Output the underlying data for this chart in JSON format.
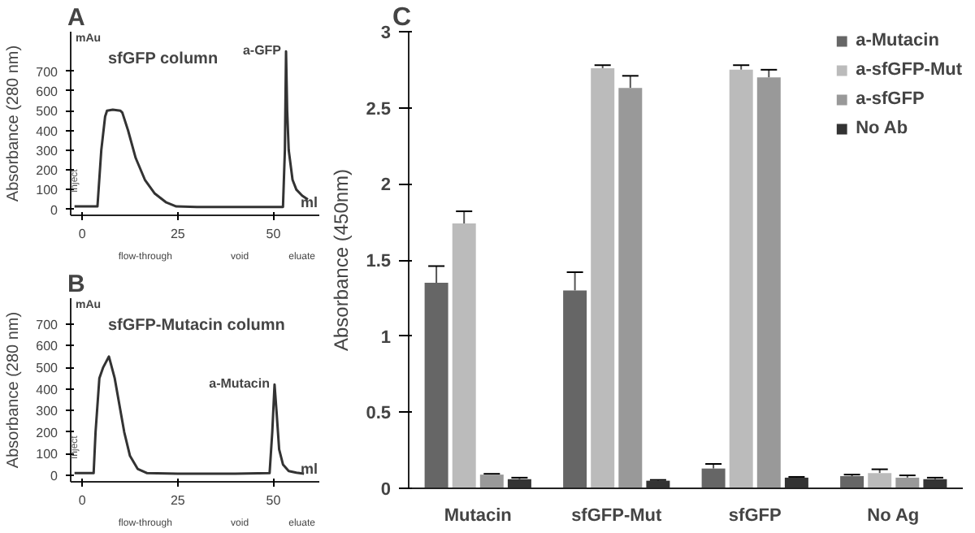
{
  "chart_data": [
    {
      "type": "line",
      "title": "sfGFP column",
      "xlabel": "ml",
      "ylabel": "Absorbance (280 nm)",
      "annotations": [
        "A",
        "mAu",
        {
          "text": "a-GFP",
          "x": 53.3,
          "y": 800
        },
        "Inject",
        "flow-through",
        "void",
        "eluate"
      ],
      "series": [
        {
          "color": "#333333",
          "x": [
            -2,
            0,
            4,
            5,
            6,
            6.5,
            8,
            10,
            10.5,
            12,
            14,
            16.4,
            19,
            22,
            24.6,
            30,
            40,
            50,
            52.5,
            53,
            53.3,
            53.6,
            54,
            55,
            56,
            57.5,
            59
          ],
          "values": [
            15,
            15,
            15,
            300,
            470,
            500,
            505,
            500,
            490,
            400,
            260,
            150,
            80,
            35,
            15,
            12,
            12,
            12,
            12,
            300,
            800,
            500,
            300,
            150,
            100,
            70,
            50
          ]
        }
      ],
      "xlim": [
        -3,
        62
      ],
      "ylim": [
        -30,
        900
      ],
      "xticks": [
        0,
        25,
        50
      ],
      "yticks": [
        0,
        100,
        200,
        300,
        400,
        500,
        600,
        700
      ],
      "grid": false,
      "line_style": "solid",
      "marker": "none"
    },
    {
      "type": "line",
      "title": "sfGFP-Mutacin column",
      "xlabel": "ml",
      "ylabel": "Absorbance (280 nm)",
      "annotations": [
        "B",
        "mAu",
        {
          "text": "a-Mutacin",
          "x": 50.3,
          "y": 420
        },
        "Inject",
        "flow-through",
        "void",
        "eluate"
      ],
      "series": [
        {
          "color": "#333333",
          "x": [
            -2,
            0,
            3,
            3.5,
            4.5,
            5.5,
            7,
            8.5,
            10,
            11,
            12.5,
            14.5,
            17,
            25,
            40,
            49,
            49.7,
            50.3,
            50.8,
            51.5,
            52.5,
            54,
            56,
            58
          ],
          "values": [
            10,
            10,
            10,
            200,
            450,
            500,
            550,
            450,
            300,
            200,
            90,
            30,
            10,
            8,
            8,
            10,
            200,
            420,
            300,
            120,
            50,
            20,
            12,
            8
          ]
        }
      ],
      "xlim": [
        -3,
        62
      ],
      "ylim": [
        -30,
        820
      ],
      "xticks": [
        0,
        25,
        50
      ],
      "yticks": [
        0,
        100,
        200,
        300,
        400,
        500,
        600,
        700
      ],
      "grid": false,
      "line_style": "solid",
      "marker": "none"
    },
    {
      "type": "bar",
      "ylabel": "Absorbance (450nm)",
      "annotations": [
        "C"
      ],
      "categories": [
        "Mutacin",
        "sfGFP-Mut",
        "sfGFP",
        "No Ag"
      ],
      "series": [
        {
          "name": "a-Mutacin",
          "color": "#666666",
          "values": [
            1.35,
            1.3,
            0.13,
            0.08
          ],
          "errors": [
            [
              1.35,
              1.46
            ],
            [
              1.3,
              1.42
            ],
            [
              0.13,
              0.16
            ],
            [
              0.08,
              0.09
            ]
          ]
        },
        {
          "name": "a-sfGFP-Mut",
          "color": "#bbbbbb",
          "values": [
            1.74,
            2.76,
            2.75,
            0.1
          ],
          "errors": [
            [
              1.74,
              1.82
            ],
            [
              2.76,
              2.78
            ],
            [
              2.75,
              2.78
            ],
            [
              0.1,
              0.125
            ]
          ]
        },
        {
          "name": "a-sfGFP",
          "color": "#999999",
          "values": [
            0.09,
            2.63,
            2.7,
            0.07
          ],
          "errors": [
            [
              0.09,
              0.095
            ],
            [
              2.63,
              2.71
            ],
            [
              2.7,
              2.75
            ],
            [
              0.07,
              0.085
            ]
          ]
        },
        {
          "name": "No Ab",
          "color": "#333333",
          "values": [
            0.06,
            0.05,
            0.07,
            0.06
          ],
          "errors": [
            [
              0.06,
              0.07
            ],
            [
              0.05,
              0.055
            ],
            [
              0.07,
              0.075
            ],
            [
              0.06,
              0.07
            ]
          ]
        }
      ],
      "ylim": [
        0,
        3
      ],
      "yticks": [
        0,
        0.5,
        1,
        1.5,
        2,
        2.5,
        3
      ],
      "grid": false,
      "legend": "top right"
    }
  ]
}
